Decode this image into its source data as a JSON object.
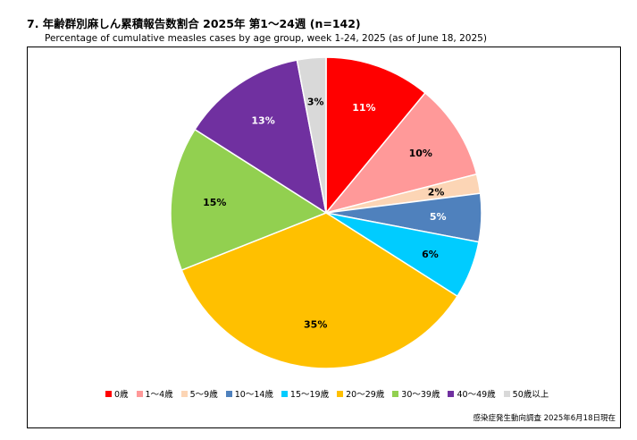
{
  "title": "7. 年齢群別麻しん累積報告数割合  2025年 第1～24週 (n=142)",
  "subtitle": "Percentage of cumulative measles cases by age group, week 1-24, 2025 (as of June 18, 2025)",
  "source": "感染症発生動向調査 2025年6月18日現在",
  "chart_data": {
    "type": "pie",
    "title": "7. 年齢群別麻しん累積報告数割合  2025年 第1～24週 (n=142)",
    "subtitle": "Percentage of cumulative measles cases by age group, week 1-24, 2025 (as of June 18, 2025)",
    "start": "12 o'clock",
    "direction": "clockwise",
    "legend_position": "bottom",
    "slices": [
      {
        "label": "0歳",
        "value": 11,
        "display": "11%",
        "color": "#ff0000",
        "label_color": "#ffffff"
      },
      {
        "label": "1～4歳",
        "value": 10,
        "display": "10%",
        "color": "#ff9999",
        "label_color": "#000000"
      },
      {
        "label": "5～9歳",
        "value": 2,
        "display": "2%",
        "color": "#fcd5b5",
        "label_color": "#000000"
      },
      {
        "label": "10～14歳",
        "value": 5,
        "display": "5%",
        "color": "#4f81bd",
        "label_color": "#ffffff"
      },
      {
        "label": "15～19歳",
        "value": 6,
        "display": "6%",
        "color": "#00ccff",
        "label_color": "#000000"
      },
      {
        "label": "20～29歳",
        "value": 35,
        "display": "35%",
        "color": "#ffc000",
        "label_color": "#000000"
      },
      {
        "label": "30～39歳",
        "value": 15,
        "display": "15%",
        "color": "#92d050",
        "label_color": "#000000"
      },
      {
        "label": "40～49歳",
        "value": 13,
        "display": "13%",
        "color": "#7030a0",
        "label_color": "#ffffff"
      },
      {
        "label": "50歳以上",
        "value": 3,
        "display": "3%",
        "color": "#d9d9d9",
        "label_color": "#000000"
      }
    ]
  }
}
